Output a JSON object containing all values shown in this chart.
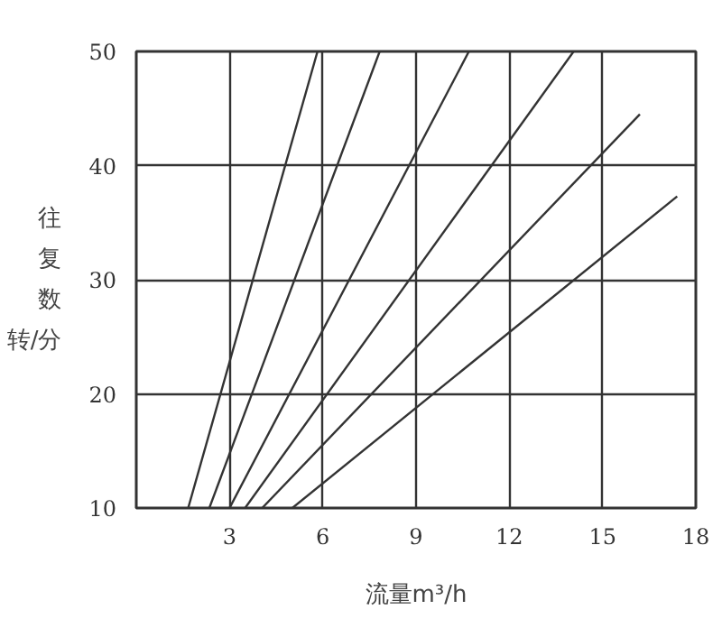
{
  "chart_data": {
    "type": "line",
    "xlabel": "流量m³/h",
    "ylabel": "往复数转/分",
    "xlim": [
      0,
      18
    ],
    "ylim": [
      10,
      50
    ],
    "xticks": [
      3,
      6,
      9,
      12,
      15,
      18
    ],
    "yticks": [
      10,
      20,
      30,
      40,
      50
    ],
    "grid": true,
    "marker": "none",
    "line_style": "solid",
    "series": [
      {
        "color": "#333333",
        "x": [
          1.67,
          5.83
        ],
        "values": [
          10,
          50
        ]
      },
      {
        "color": "#333333",
        "x": [
          2.35,
          7.83
        ],
        "values": [
          10,
          50
        ]
      },
      {
        "color": "#333333",
        "x": [
          3.0,
          10.7
        ],
        "values": [
          10,
          50
        ]
      },
      {
        "color": "#333333",
        "x": [
          3.5,
          14.07
        ],
        "values": [
          10,
          50
        ]
      },
      {
        "color": "#333333",
        "x": [
          4.05,
          16.2
        ],
        "values": [
          10,
          44.5
        ]
      },
      {
        "color": "#333333",
        "x": [
          5.02,
          17.4
        ],
        "values": [
          10,
          37.3
        ]
      }
    ]
  }
}
